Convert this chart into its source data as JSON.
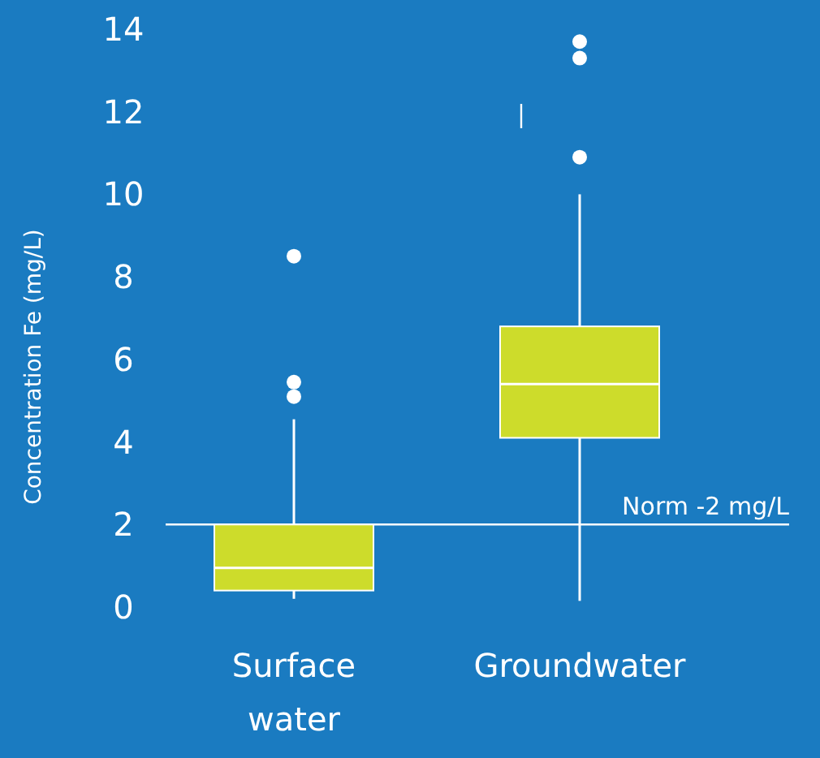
{
  "chart_data": {
    "type": "box",
    "ylabel": "Concentration  Fe (mg/L)",
    "categories": [
      "Surface water",
      "Groundwater"
    ],
    "color": "#cddc2b",
    "boxes": [
      {
        "low": 0.2,
        "q1": 0.4,
        "median": 0.95,
        "q3": 2.0,
        "high": 4.55,
        "outliers": [
          5.1,
          5.45,
          8.5
        ]
      },
      {
        "low": 0.15,
        "q1": 4.1,
        "median": 5.4,
        "q3": 6.8,
        "high": 10.0,
        "outliers": [
          10.9,
          13.3,
          13.7
        ]
      }
    ],
    "ylim": [
      0,
      14
    ],
    "yticks": [
      0,
      2,
      4,
      6,
      8,
      10,
      12,
      14
    ],
    "ref_lines": [
      {
        "axis": "y",
        "value": 2,
        "label": "Norm -2 mg/L",
        "color": "#ffffff"
      }
    ]
  }
}
